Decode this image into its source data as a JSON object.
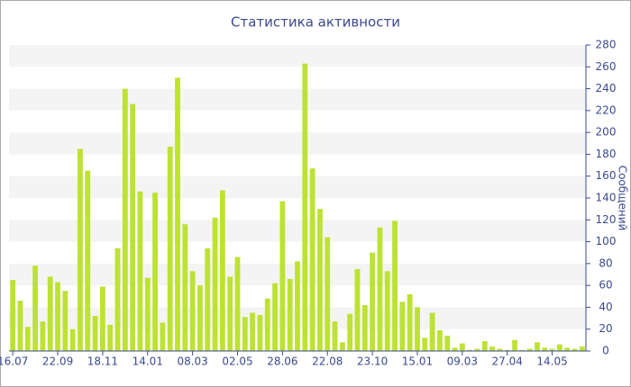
{
  "chart_data": {
    "type": "bar",
    "title": "Статистика активности",
    "y_label": "Сообщений",
    "categories": [
      "16.07",
      null,
      null,
      null,
      null,
      null,
      "22.09",
      null,
      null,
      null,
      null,
      null,
      "18.11",
      null,
      null,
      null,
      null,
      null,
      "14.01",
      null,
      null,
      null,
      null,
      null,
      "08.03",
      null,
      null,
      null,
      null,
      null,
      "02.05",
      null,
      null,
      null,
      null,
      null,
      "28.06",
      null,
      null,
      null,
      null,
      null,
      "22.08",
      null,
      null,
      null,
      null,
      null,
      "23.10",
      null,
      null,
      null,
      null,
      null,
      "15.01",
      null,
      null,
      null,
      null,
      null,
      "09.03",
      null,
      null,
      null,
      null,
      null,
      "27.04",
      null,
      null,
      null,
      null,
      null,
      "14.05",
      null,
      null,
      null,
      null
    ],
    "values": [
      65,
      46,
      22,
      78,
      27,
      68,
      63,
      55,
      20,
      185,
      165,
      32,
      59,
      24,
      94,
      240,
      226,
      146,
      67,
      145,
      26,
      187,
      250,
      116,
      73,
      60,
      94,
      122,
      147,
      68,
      86,
      31,
      35,
      33,
      48,
      62,
      137,
      66,
      82,
      263,
      167,
      130,
      104,
      27,
      8,
      34,
      75,
      42,
      90,
      113,
      73,
      119,
      45,
      52,
      40,
      12,
      35,
      19,
      14,
      3,
      7,
      1,
      2,
      9,
      4,
      2,
      1,
      10,
      1,
      2,
      8,
      3,
      2,
      6,
      3,
      2,
      4
    ],
    "color": "#bde233",
    "ylim": [
      0,
      280
    ],
    "yticks": [
      0,
      20,
      40,
      60,
      80,
      100,
      120,
      140,
      160,
      180,
      200,
      220,
      240,
      260,
      280
    ],
    "banded_grid": true,
    "y_axis_side": "right"
  }
}
